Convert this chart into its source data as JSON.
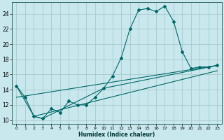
{
  "xlabel": "Humidex (Indice chaleur)",
  "background_color": "#c8e8ee",
  "grid_color": "#a0c4c8",
  "line_color": "#006666",
  "xlim": [
    -0.5,
    23.5
  ],
  "ylim": [
    9.5,
    25.5
  ],
  "yticks": [
    10,
    12,
    14,
    16,
    18,
    20,
    22,
    24
  ],
  "xticks": [
    0,
    1,
    2,
    3,
    4,
    5,
    6,
    7,
    8,
    9,
    10,
    11,
    12,
    13,
    14,
    15,
    16,
    17,
    18,
    19,
    20,
    21,
    22,
    23
  ],
  "line1_x": [
    0,
    1,
    2,
    3,
    4,
    5,
    6,
    7,
    8,
    9,
    10,
    11,
    12,
    13,
    14,
    15,
    16,
    17,
    18,
    19,
    20,
    21,
    22,
    23
  ],
  "line1_y": [
    14.5,
    13.0,
    10.5,
    10.2,
    11.5,
    11.0,
    12.5,
    12.0,
    12.0,
    13.0,
    14.2,
    15.8,
    18.2,
    22.0,
    24.5,
    24.7,
    24.3,
    25.0,
    23.0,
    19.0,
    16.8,
    17.0,
    17.0,
    17.2
  ],
  "line2_x": [
    0,
    2,
    3,
    10,
    23
  ],
  "line2_y": [
    14.5,
    10.5,
    10.2,
    14.2,
    17.2
  ],
  "line3_x": [
    0,
    23
  ],
  "line3_y": [
    13.0,
    17.2
  ],
  "line4_x": [
    2,
    23
  ],
  "line4_y": [
    10.5,
    16.5
  ]
}
